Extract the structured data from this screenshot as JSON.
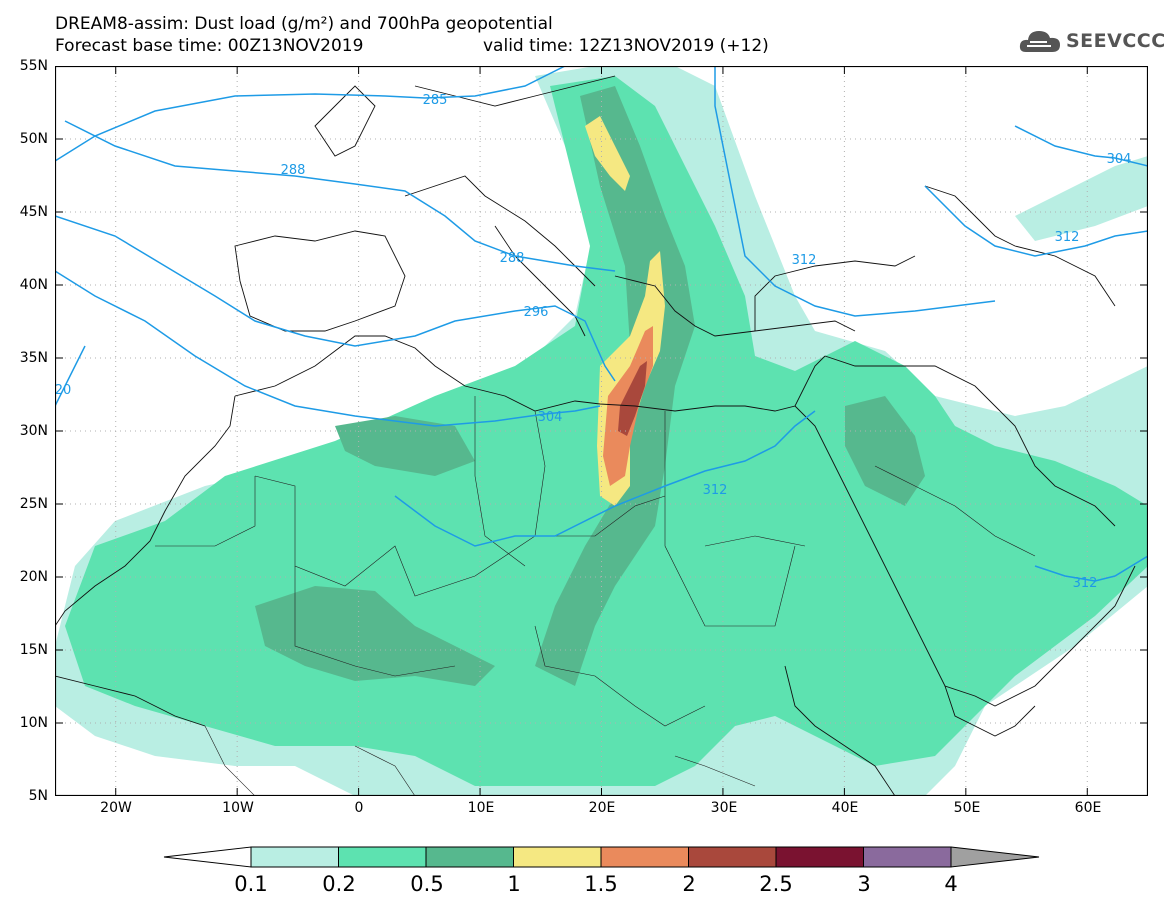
{
  "title": {
    "line1": "DREAM8-assim: Dust load (g/m²) and 700hPa geopotential",
    "line2_base": "Forecast base time: 00Z13NOV2019",
    "line2_valid": "valid time: 12Z13NOV2019 (+12)"
  },
  "logo": {
    "text": "SEEVCCC",
    "icon": "cloud-icon"
  },
  "map": {
    "lon_range": [
      -25,
      65
    ],
    "lat_range": [
      5,
      55
    ],
    "lat_labels": [
      "55N",
      "50N",
      "45N",
      "40N",
      "35N",
      "30N",
      "25N",
      "20N",
      "15N",
      "10N",
      "5N"
    ],
    "lon_labels": [
      "20W",
      "10W",
      "0",
      "10E",
      "20E",
      "30E",
      "40E",
      "50E",
      "60E"
    ],
    "contour_labels": [
      "285",
      "288",
      "288",
      "296",
      "304",
      "312",
      "312",
      "304",
      "312",
      "312",
      "20"
    ],
    "contour_color": "#1e9be6"
  },
  "colorbar": {
    "ticks": [
      "0.1",
      "0.2",
      "0.5",
      "1",
      "1.5",
      "2",
      "2.5",
      "3",
      "4"
    ],
    "colors": [
      "#ffffff",
      "#b9eee3",
      "#5de2b0",
      "#56b88e",
      "#f5e882",
      "#ea8a5c",
      "#a9483c",
      "#7a1230",
      "#8a6a9d",
      "#a0a0a0"
    ]
  }
}
